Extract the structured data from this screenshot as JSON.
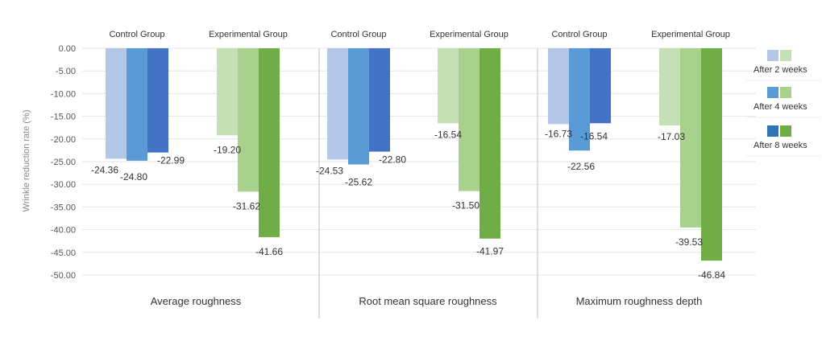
{
  "chart_data": {
    "type": "bar",
    "ylabel": "Wrinkle reduction rate (%)",
    "ylim": [
      -50,
      0
    ],
    "yticks": [
      0,
      -5,
      -10,
      -15,
      -20,
      -25,
      -30,
      -35,
      -40,
      -45,
      -50
    ],
    "ytick_labels": [
      "0.00",
      "-5.00",
      "-10.00",
      "-15.00",
      "-20.00",
      "-25.00",
      "-30.00",
      "-35.00",
      "-40.00",
      "-45.00",
      "-50.00"
    ],
    "categories": [
      "Average roughness",
      "Root mean square roughness",
      "Maximum roughness depth"
    ],
    "groups": [
      "Control Group",
      "Experimental Group"
    ],
    "legend": [
      "After 2 weeks",
      "After 4 weeks",
      "After 8 weeks"
    ],
    "legend_position": "right",
    "colors": {
      "control": [
        "#b4c7e7",
        "#5b9bd5",
        "#4472c4"
      ],
      "experimental": [
        "#c5e0b4",
        "#a9d18e",
        "#70ad47"
      ],
      "legend_control": [
        "#b4c7e7",
        "#5b9bd5",
        "#2e75b6"
      ]
    },
    "panels": [
      {
        "category": "Average roughness",
        "control": {
          "values": [
            -24.36,
            -24.8,
            -22.99
          ],
          "labels": [
            "-24.36",
            "-24.80",
            "-22.99"
          ]
        },
        "experimental": {
          "values": [
            -19.2,
            -31.62,
            -41.66
          ],
          "labels": [
            "-19.20",
            "-31.62",
            "-41.66"
          ]
        }
      },
      {
        "category": "Root mean square roughness",
        "control": {
          "values": [
            -24.53,
            -25.62,
            -22.8
          ],
          "labels": [
            "-24.53",
            "-25.62",
            "-22.80"
          ]
        },
        "experimental": {
          "values": [
            -16.54,
            -31.5,
            -41.97
          ],
          "labels": [
            "-16.54",
            "-31.50",
            "-41.97"
          ]
        }
      },
      {
        "category": "Maximum roughness depth",
        "control": {
          "values": [
            -16.73,
            -22.56,
            -16.54
          ],
          "labels": [
            "-16.73",
            "-22.56",
            "-16.54"
          ]
        },
        "experimental": {
          "values": [
            -17.03,
            -39.53,
            -46.84
          ],
          "labels": [
            "-17.03",
            "-39.53",
            "-46.84"
          ]
        }
      }
    ],
    "grid": true
  }
}
